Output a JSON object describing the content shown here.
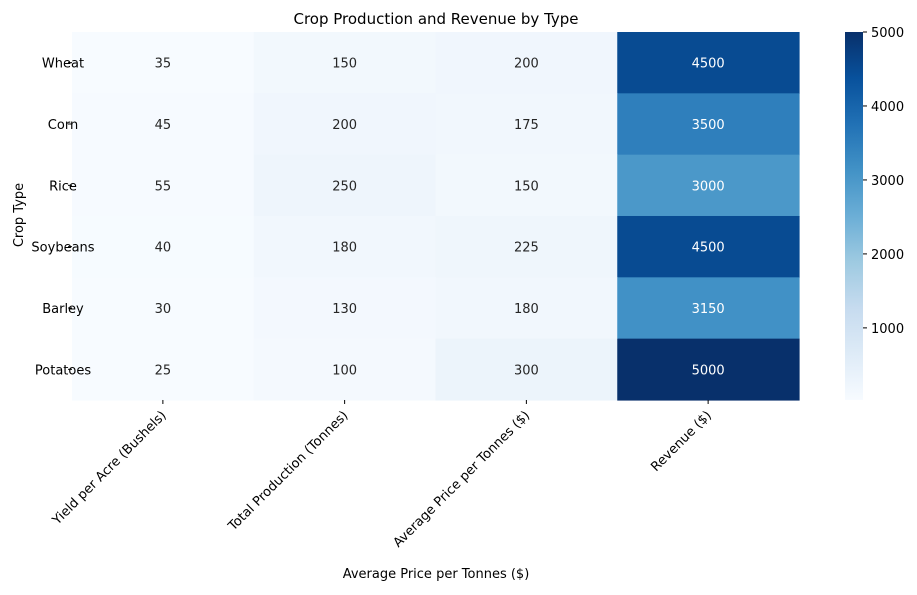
{
  "chart_data": {
    "type": "heatmap",
    "title": "Crop Production and Revenue by Type",
    "xlabel": "Average Price per Tonnes ($)",
    "ylabel": "Crop Type",
    "columns": [
      "Yield per Acre (Bushels)",
      "Total Production (Tonnes)",
      "Average Price per Tonnes ($)",
      "Revenue ($)"
    ],
    "rows": [
      "Wheat",
      "Corn",
      "Rice",
      "Soybeans",
      "Barley",
      "Potatoes"
    ],
    "values": [
      [
        35,
        150,
        200,
        4500
      ],
      [
        45,
        200,
        175,
        3500
      ],
      [
        55,
        250,
        150,
        3000
      ],
      [
        40,
        180,
        225,
        4500
      ],
      [
        30,
        130,
        180,
        3150
      ],
      [
        25,
        100,
        300,
        5000
      ]
    ],
    "vmin": 25,
    "vmax": 5000,
    "colormap": "Blues",
    "colorbar_ticks": [
      "1000",
      "2000",
      "3000",
      "4000",
      "5000"
    ],
    "annotation_colors": {
      "light": "#ffffff",
      "dark": "#262626"
    }
  }
}
